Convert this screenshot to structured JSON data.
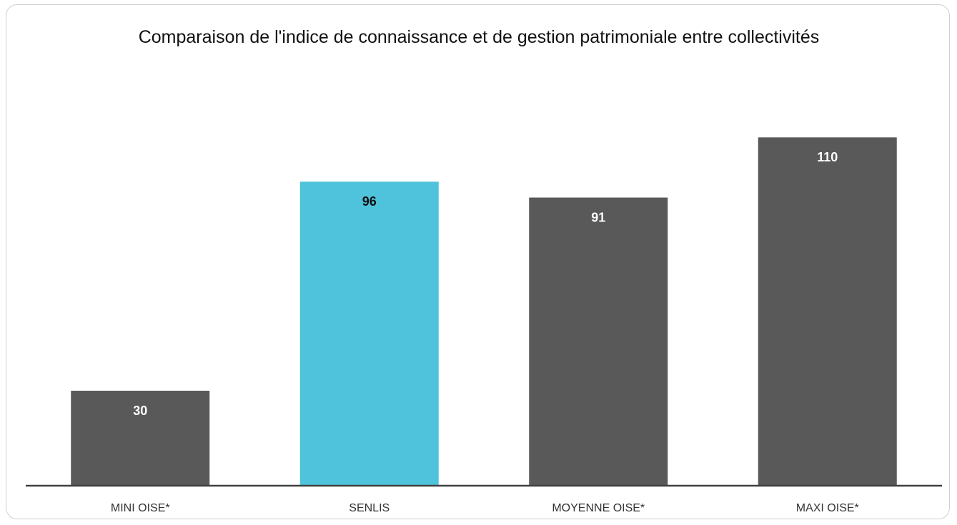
{
  "chart_data": {
    "type": "bar",
    "title": "Comparaison de l'indice de connaissance et de gestion patrimoniale entre collectivités",
    "categories": [
      "MINI OISE*",
      "SENLIS",
      "MOYENNE OISE*",
      "MAXI OISE*"
    ],
    "values": [
      30,
      96,
      91,
      110
    ],
    "colors": [
      "#595959",
      "#4fc3dc",
      "#595959",
      "#595959"
    ],
    "ylim": [
      0,
      120
    ]
  }
}
